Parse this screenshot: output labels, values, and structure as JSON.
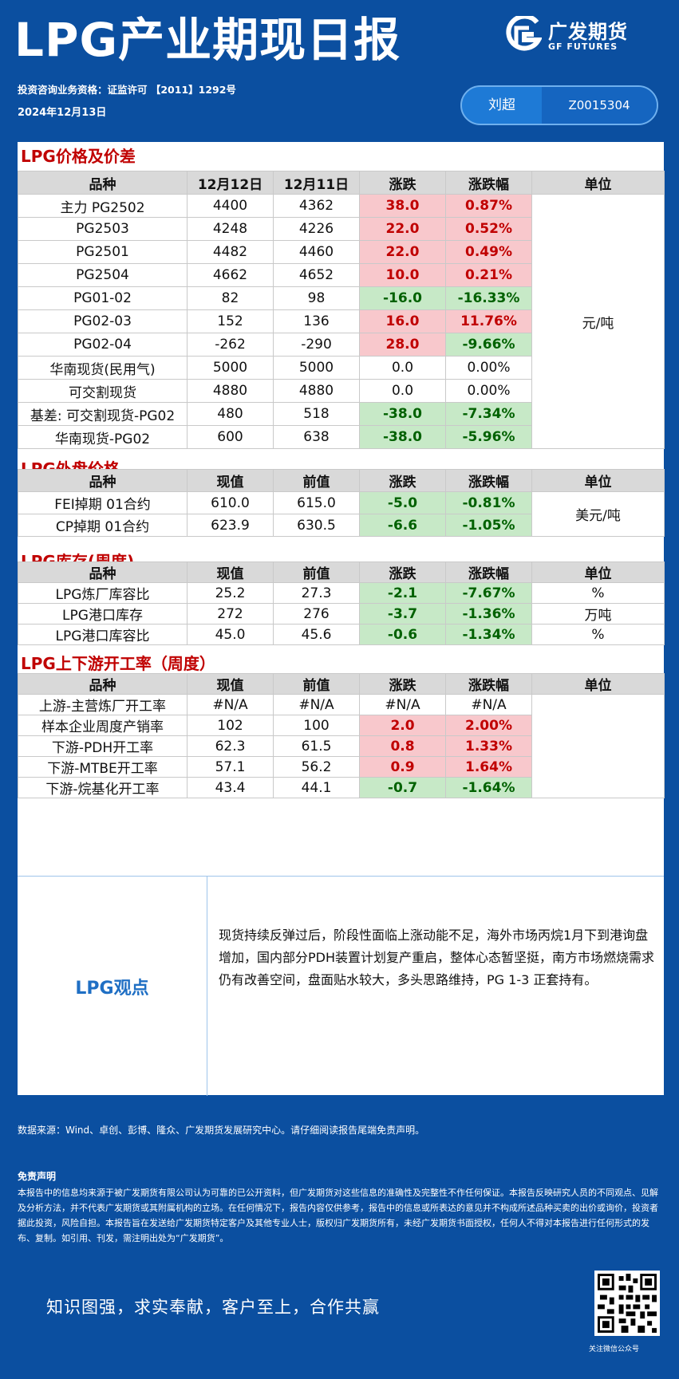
{
  "header": {
    "title": "LPG产业期现日报",
    "logo_cn": "广发期货",
    "logo_en": "GF FUTURES",
    "license": "投资咨询业务资格：证监许可 【2011】1292号",
    "date": "2024年12月13日",
    "analyst_name": "刘超",
    "analyst_id": "Z0015304"
  },
  "sections": {
    "price": {
      "title": "LPG价格及价差",
      "headers": [
        "品种",
        "12月12日",
        "12月11日",
        "涨跌",
        "涨跌幅",
        "单位"
      ],
      "unit": "元/吨",
      "rows": [
        [
          "主力 PG2502",
          "4400",
          "4362",
          "38.0",
          "0.87%"
        ],
        [
          "PG2503",
          "4248",
          "4226",
          "22.0",
          "0.52%"
        ],
        [
          "PG2501",
          "4482",
          "4460",
          "22.0",
          "0.49%"
        ],
        [
          "PG2504",
          "4662",
          "4652",
          "10.0",
          "0.21%"
        ],
        [
          "PG01-02",
          "82",
          "98",
          "-16.0",
          "-16.33%"
        ],
        [
          "PG02-03",
          "152",
          "136",
          "16.0",
          "11.76%"
        ],
        [
          "PG02-04",
          "-262",
          "-290",
          "28.0",
          "-9.66%"
        ],
        [
          "华南现货(民用气)",
          "5000",
          "5000",
          "0.0",
          "0.00%"
        ],
        [
          "可交割现货",
          "4880",
          "4880",
          "0.0",
          "0.00%"
        ],
        [
          "基差: 可交割现货-PG02",
          "480",
          "518",
          "-38.0",
          "-7.34%"
        ],
        [
          "华南现货-PG02",
          "600",
          "638",
          "-38.0",
          "-5.96%"
        ]
      ]
    },
    "external": {
      "title": "LPG外盘价格",
      "headers": [
        "品种",
        "现值",
        "前值",
        "涨跌",
        "涨跌幅",
        "单位"
      ],
      "unit": "美元/吨",
      "rows": [
        [
          "FEI掉期 01合约",
          "610.0",
          "615.0",
          "-5.0",
          "-0.81%"
        ],
        [
          "CP掉期  01合约",
          "623.9",
          "630.5",
          "-6.6",
          "-1.05%"
        ]
      ]
    },
    "inventory": {
      "title": "LPG库存(周度)",
      "headers": [
        "品种",
        "现值",
        "前值",
        "涨跌",
        "涨跌幅",
        "单位"
      ],
      "rows": [
        [
          "LPG炼厂库容比",
          "25.2",
          "27.3",
          "-2.1",
          "-7.67%",
          "%"
        ],
        [
          "LPG港口库存",
          "272",
          "276",
          "-3.7",
          "-1.36%",
          "万吨"
        ],
        [
          "LPG港口库容比",
          "45.0",
          "45.6",
          "-0.6",
          "-1.34%",
          "%"
        ]
      ]
    },
    "operation": {
      "title": "LPG上下游开工率（周度）",
      "headers": [
        "品种",
        "现值",
        "前值",
        "涨跌",
        "涨跌幅",
        "单位"
      ],
      "rows": [
        [
          "上游-主营炼厂开工率",
          "#N/A",
          "#N/A",
          "#N/A",
          "#N/A"
        ],
        [
          "样本企业周度产销率",
          "102",
          "100",
          "2.0",
          "2.00%"
        ],
        [
          "下游-PDH开工率",
          "62.3",
          "61.5",
          "0.8",
          "1.33%"
        ],
        [
          "下游-MTBE开工率",
          "57.1",
          "56.2",
          "0.9",
          "1.64%"
        ],
        [
          "下游-烷基化开工率",
          "43.4",
          "44.1",
          "-0.7",
          "-1.64%"
        ]
      ]
    }
  },
  "view": {
    "label": "LPG观点",
    "text": "现货持续反弹过后，阶段性面临上涨动能不足，海外市场丙烷1月下到港询盘增加，国内部分PDH装置计划复产重启，整体心态暂坚挺，南方市场燃烧需求仍有改善空间，盘面贴水较大，多头思路维持，PG 1-3 正套持有。"
  },
  "footer": {
    "source": "数据来源：Wind、卓创、彭博、隆众、广发期货发展研究中心。请仔细阅读报告尾端免责声明。",
    "disclaimer_title": "免责声明",
    "disclaimer_body": "本报告中的信息均来源于被广发期货有限公司认为可靠的已公开资料，但广发期货对这些信息的准确性及完整性不作任何保证。本报告反映研究人员的不同观点、见解及分析方法，并不代表广发期货或其附属机构的立场。在任何情况下，报告内容仅供参考，报告中的信息或所表达的意见并不构成所述品种买卖的出价或询价，投资者据此投资，风险自担。本报告旨在发送给广发期货特定客户及其他专业人士，版权归广发期货所有，未经广发期货书面授权，任何人不得对本报告进行任何形式的发布、复制。如引用、刊发，需注明出处为“广发期货”。",
    "slogan": "知识图强，求实奉献，客户至上，合作共赢",
    "qr_label": "关注微信公众号"
  },
  "colors": {
    "background": "#0b4fa0",
    "up_bg": "#f8c8cc",
    "up_text": "#c00000",
    "down_bg": "#c7e9c7",
    "down_text": "#006100",
    "section_title": "#c00000"
  }
}
